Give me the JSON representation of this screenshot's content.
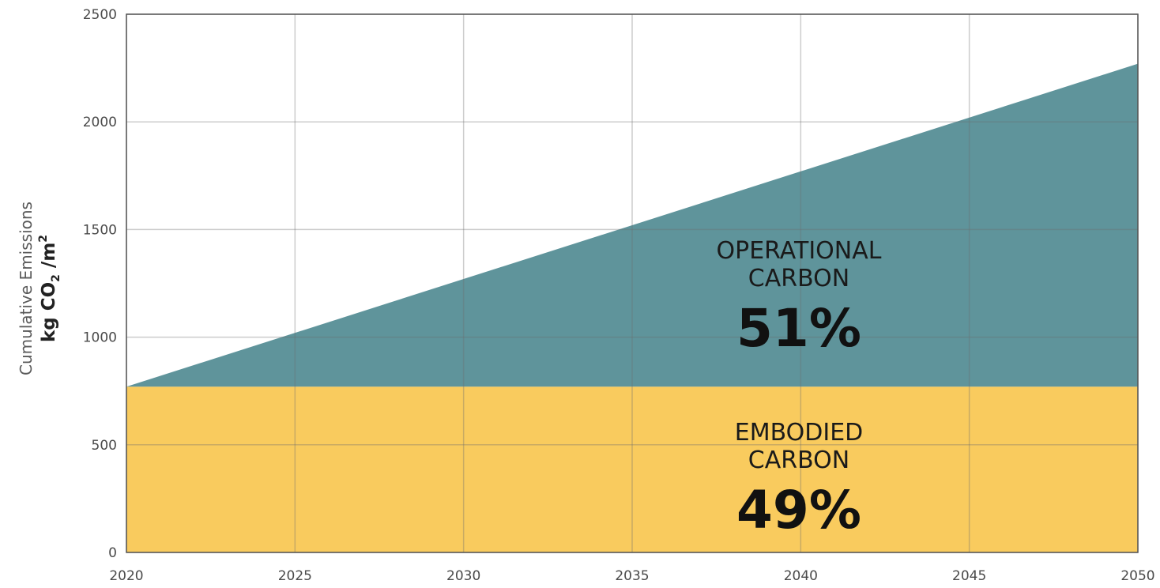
{
  "chart_data": {
    "type": "area",
    "x": [
      2020,
      2050
    ],
    "xlim": [
      2020,
      2050
    ],
    "ylim": [
      0,
      2500
    ],
    "x_ticks": [
      "2020",
      "2025",
      "2030",
      "2035",
      "2040",
      "2045",
      "2050"
    ],
    "y_ticks": [
      "0",
      "500",
      "1000",
      "1500",
      "2000",
      "2500"
    ],
    "ylabel": "Cumulative Emissions",
    "ylabel_unit": {
      "prefix": "kg CO",
      "subscript": "2",
      "middle": " /m",
      "superscript": "2"
    },
    "grid": true,
    "series": [
      {
        "name": "EMBODIED CARBON",
        "label_lines": [
          "EMBODIED",
          "CARBON"
        ],
        "percent": "49%",
        "color": "#F9CB5E",
        "values": [
          770,
          770
        ]
      },
      {
        "name": "OPERATIONAL CARBON",
        "label_lines": [
          "OPERATIONAL",
          "CARBON"
        ],
        "percent": "51%",
        "color": "#5F949B",
        "values": [
          770,
          2270
        ]
      }
    ]
  }
}
